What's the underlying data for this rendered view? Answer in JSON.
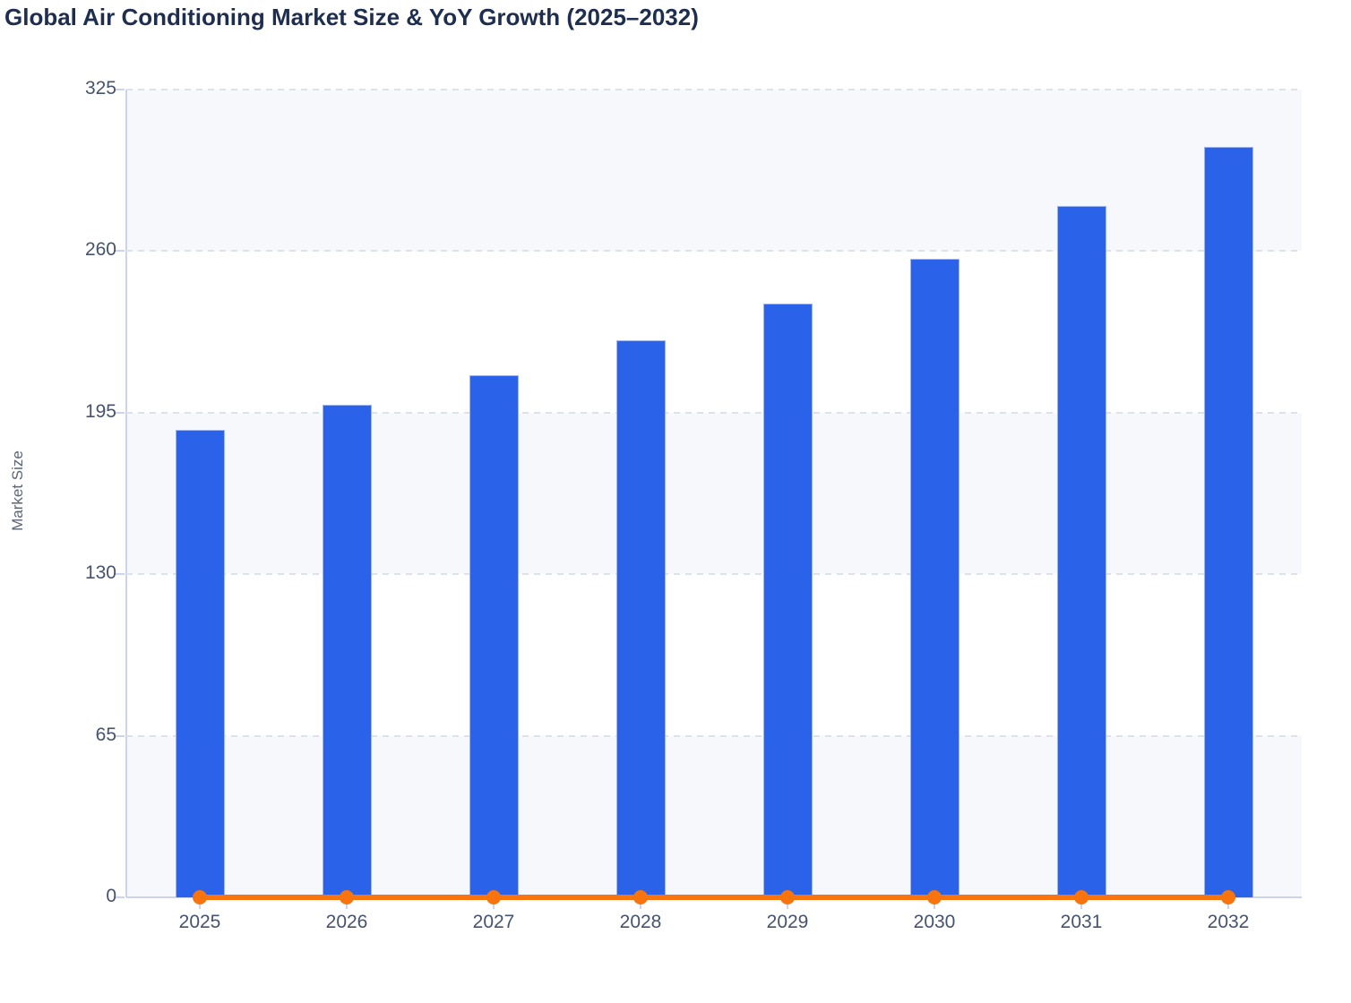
{
  "title": "Global Air Conditioning Market Size & YoY Growth (2025–2032)",
  "chart_data": {
    "type": "bar",
    "categories": [
      "2025",
      "2026",
      "2027",
      "2028",
      "2029",
      "2030",
      "2031",
      "2032"
    ],
    "series": [
      {
        "name": "Market Size",
        "type": "bar",
        "color": "#2a62e9",
        "values": [
          188,
          198,
          210,
          224,
          239,
          257,
          278,
          302
        ]
      },
      {
        "name": "YoY Growth",
        "type": "line",
        "color": "#f7740e",
        "values": [
          0,
          0,
          0,
          0,
          0,
          0,
          0,
          0
        ]
      }
    ],
    "ylabel": "Market Size",
    "xlabel": "",
    "yticks": [
      0,
      65,
      130,
      195,
      260,
      325
    ],
    "ylim": [
      0,
      325
    ],
    "grid": "horizontal-dashed",
    "legend": "none",
    "plot_band_colors": [
      "#f7f8fb",
      "#ffffff"
    ]
  }
}
